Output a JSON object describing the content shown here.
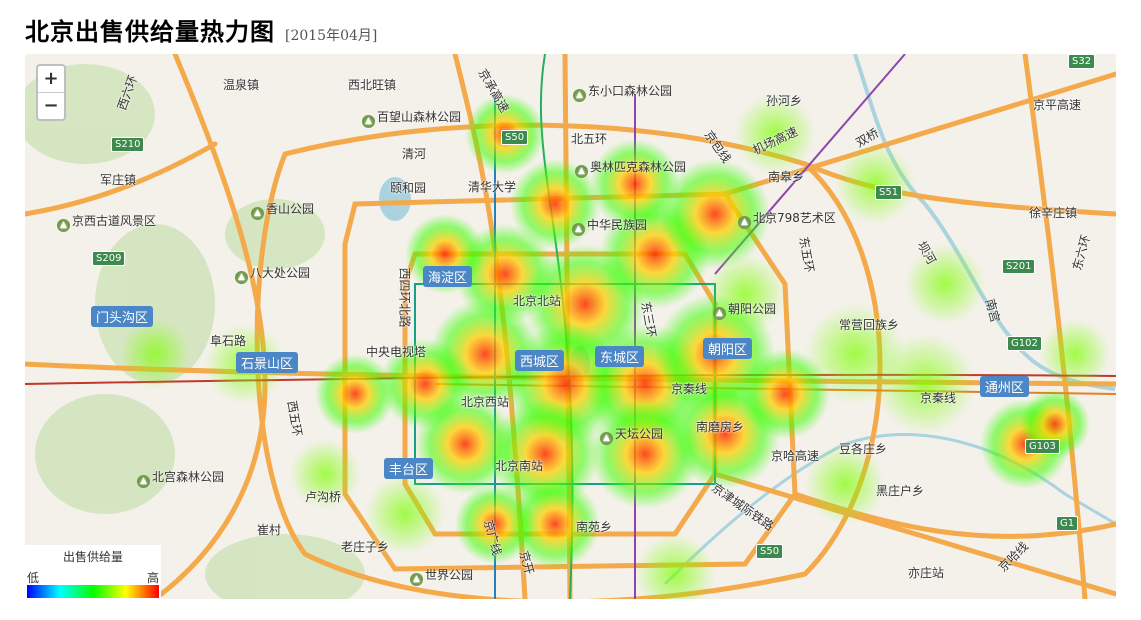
{
  "title": {
    "main": "北京出售供给量热力图",
    "sub": "[2015年04月]"
  },
  "zoom": {
    "in": "+",
    "out": "−"
  },
  "legend": {
    "title": "出售供给量",
    "low": "低",
    "high": "高"
  },
  "districts": [
    {
      "name": "海淀区"
    },
    {
      "name": "门头沟区"
    },
    {
      "name": "石景山区"
    },
    {
      "name": "西城区"
    },
    {
      "name": "东城区"
    },
    {
      "name": "朝阳区"
    },
    {
      "name": "丰台区"
    },
    {
      "name": "通州区"
    }
  ],
  "parks": [
    {
      "name": "百望山森林公园"
    },
    {
      "name": "奥林匹克森林公园"
    },
    {
      "name": "东小口森林公园"
    },
    {
      "name": "香山公园"
    },
    {
      "name": "八大处公园"
    },
    {
      "name": "中华民族园"
    },
    {
      "name": "北京798艺术区"
    },
    {
      "name": "朝阳公园"
    },
    {
      "name": "天坛公园"
    },
    {
      "name": "北宫森林公园"
    },
    {
      "name": "世界公园"
    },
    {
      "name": "京西古道风景区"
    }
  ],
  "stations": [
    {
      "name": "北京北站"
    },
    {
      "name": "北京西站"
    },
    {
      "name": "北京南站"
    },
    {
      "name": "亦庄站"
    },
    {
      "name": "中央电视塔"
    },
    {
      "name": "颐和园"
    },
    {
      "name": "清华大学"
    },
    {
      "name": "卢沟桥"
    }
  ],
  "places": [
    {
      "name": "温泉镇"
    },
    {
      "name": "西北旺镇"
    },
    {
      "name": "军庄镇"
    },
    {
      "name": "孙河乡"
    },
    {
      "name": "南皋乡"
    },
    {
      "name": "徐辛庄镇"
    },
    {
      "name": "常营回族乡"
    },
    {
      "name": "豆各庄乡"
    },
    {
      "name": "黑庄户乡"
    },
    {
      "name": "南苑乡"
    },
    {
      "name": "老庄子乡"
    },
    {
      "name": "崔村"
    },
    {
      "name": "北五环"
    },
    {
      "name": "阜石路"
    },
    {
      "name": "京哈高速"
    },
    {
      "name": "京津城际铁路"
    },
    {
      "name": "京秦线"
    },
    {
      "name": "南磨房乡"
    },
    {
      "name": "清河"
    },
    {
      "name": "东五环"
    },
    {
      "name": "西四环北路"
    },
    {
      "name": "西五环"
    },
    {
      "name": "京平高速"
    },
    {
      "name": "机场高速"
    },
    {
      "name": "京包线"
    },
    {
      "name": "京承高速"
    },
    {
      "name": "京秦线"
    },
    {
      "name": "坝河"
    },
    {
      "name": "京广线"
    },
    {
      "name": "东六环"
    },
    {
      "name": "京开"
    },
    {
      "name": "西六环"
    },
    {
      "name": "东三环"
    },
    {
      "name": "京哈线"
    },
    {
      "name": "双桥"
    },
    {
      "name": "南宫"
    }
  ],
  "shields": [
    "S50",
    "S210",
    "S209",
    "S51",
    "S201",
    "G102",
    "G103",
    "S50",
    "G1",
    "S32"
  ],
  "colors": {
    "heat_low": "#00ff00",
    "heat_mid": "#ffff00",
    "heat_high": "#ff3300",
    "road": "#f4a94a",
    "water": "#aad3df",
    "district_label": "#4b86c6"
  }
}
